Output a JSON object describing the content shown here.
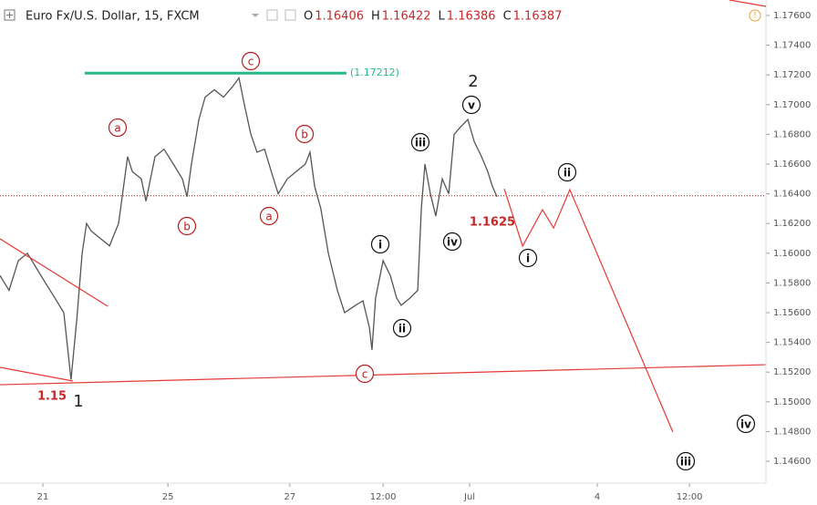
{
  "chart_data": {
    "type": "line",
    "title": "Euro Fx/U.S. Dollar, 15, FXCM",
    "ohlc": [
      {
        "label": "O",
        "value": 1.16406
      },
      {
        "label": "H",
        "value": 1.16422
      },
      {
        "label": "L",
        "value": 1.16386
      },
      {
        "label": "C",
        "value": 1.16387
      }
    ],
    "xlim": [
      0,
      296.5
    ],
    "xticks": [
      {
        "value": 16.6,
        "label": "21"
      },
      {
        "value": 65,
        "label": "25"
      },
      {
        "value": 112.2,
        "label": "27"
      },
      {
        "value": 148.3,
        "label": "12:00"
      },
      {
        "value": 181.8,
        "label": "Jul"
      },
      {
        "value": 231.2,
        "label": "4"
      },
      {
        "value": 266.9,
        "label": "12:00"
      }
    ],
    "ylim": [
      1.14453,
      1.17704
    ],
    "yticks": [
      {
        "value": 1.146,
        "label": "1.14600"
      },
      {
        "value": 1.148,
        "label": "1.14800"
      },
      {
        "value": 1.15,
        "label": "1.15000"
      },
      {
        "value": 1.152,
        "label": "1.15200"
      },
      {
        "value": 1.154,
        "label": "1.15400"
      },
      {
        "value": 1.156,
        "label": "1.15600"
      },
      {
        "value": 1.158,
        "label": "1.15800"
      },
      {
        "value": 1.16,
        "label": "1.16000"
      },
      {
        "value": 1.162,
        "label": "1.16200"
      },
      {
        "value": 1.164,
        "label": "1.16400"
      },
      {
        "value": 1.166,
        "label": "1.16600"
      },
      {
        "value": 1.168,
        "label": "1.16800"
      },
      {
        "value": 1.17,
        "label": "1.17000"
      },
      {
        "value": 1.172,
        "label": "1.17200"
      },
      {
        "value": 1.174,
        "label": "1.17400"
      },
      {
        "value": 1.176,
        "label": "1.17600"
      }
    ],
    "series": [
      {
        "name": "price",
        "color": "#555555",
        "x": [
          0,
          3.5,
          7.1,
          10.6,
          14.1,
          17.6,
          21.2,
          24.7,
          27.5,
          29.7,
          31.8,
          33.5,
          35.3,
          38.8,
          42.4,
          45.9,
          49.4,
          51.2,
          54.7,
          56.5,
          60,
          63.5,
          67.1,
          70.6,
          72.4,
          74.1,
          77,
          79.4,
          83,
          86.5,
          90,
          92.5,
          94.6,
          97.1,
          99.5,
          102.4,
          105.9,
          107.7,
          111.2,
          114.7,
          118.2,
          120,
          121.8,
          124.2,
          127.1,
          130.6,
          133.4,
          137.7,
          140.5,
          143,
          144,
          145.4,
          148.3,
          151.1,
          153.5,
          155.3,
          158.8,
          161.7,
          163.1,
          164.5,
          166.6,
          168.7,
          171.2,
          173.7,
          175.8,
          178.3,
          181.1,
          183.6,
          186.4,
          188.8,
          190.6,
          192.4
        ],
        "values": [
          1.1585,
          1.1575,
          1.1595,
          1.16,
          1.159,
          1.158,
          1.157,
          1.156,
          1.1515,
          1.1555,
          1.16,
          1.162,
          1.1615,
          1.161,
          1.1605,
          1.162,
          1.1665,
          1.1655,
          1.165,
          1.1635,
          1.1665,
          1.167,
          1.166,
          1.165,
          1.1638,
          1.166,
          1.169,
          1.1705,
          1.171,
          1.1705,
          1.1712,
          1.1718,
          1.17,
          1.168,
          1.1668,
          1.167,
          1.165,
          1.164,
          1.165,
          1.1655,
          1.166,
          1.1668,
          1.1645,
          1.163,
          1.16,
          1.1575,
          1.156,
          1.1565,
          1.1568,
          1.155,
          1.1535,
          1.157,
          1.1595,
          1.1585,
          1.157,
          1.1565,
          1.157,
          1.1575,
          1.163,
          1.166,
          1.164,
          1.1625,
          1.165,
          1.164,
          1.168,
          1.1685,
          1.169,
          1.1675,
          1.1665,
          1.1655,
          1.1645,
          1.1638
        ]
      },
      {
        "name": "projection",
        "color": "#e53935",
        "x": [
          195.2,
          202.3,
          210,
          214.3,
          220.6,
          260.5
        ],
        "values": [
          1.16434,
          1.16048,
          1.16293,
          1.1617,
          1.16428,
          1.14796
        ]
      },
      {
        "name": "trend-upper",
        "color": "#e53935",
        "x": [
          0,
          41.7
        ],
        "values": [
          1.16097,
          1.15643
        ]
      },
      {
        "name": "trend-lower-short",
        "color": "#e53935",
        "x": [
          0,
          28.2
        ],
        "values": [
          1.15232,
          1.1514
        ]
      },
      {
        "name": "trend-lower",
        "color": "#e53935",
        "x": [
          0,
          296.5
        ],
        "values": [
          1.15115,
          1.1525
        ]
      },
      {
        "name": "resistance",
        "color": "#26b98a",
        "x": [
          32.8,
          134.1
        ],
        "values": [
          1.17212,
          1.17212
        ],
        "value_labels": [
          "(1.17212)"
        ]
      }
    ],
    "current_price": 1.16387,
    "annotations": [
      {
        "text": "a",
        "style": "red"
      },
      {
        "text": "c",
        "style": "red"
      },
      {
        "text": "b",
        "style": "red"
      },
      {
        "text": "b",
        "style": "red"
      },
      {
        "text": "a",
        "style": "red"
      },
      {
        "text": "c",
        "style": "red"
      },
      {
        "text": "i",
        "style": "black"
      },
      {
        "text": "ii",
        "style": "black"
      },
      {
        "text": "iii",
        "style": "black"
      },
      {
        "text": "iv",
        "style": "black"
      },
      {
        "text": "v",
        "style": "black"
      },
      {
        "text": "2",
        "style": "plain"
      },
      {
        "text": "1",
        "style": "plain"
      },
      {
        "text": "1.15",
        "style": "price"
      },
      {
        "text": "1.1625",
        "style": "price"
      },
      {
        "text": "i",
        "style": "black"
      },
      {
        "text": "ii",
        "style": "black"
      },
      {
        "text": "iii",
        "style": "black"
      },
      {
        "text": "iv",
        "style": "black"
      }
    ]
  }
}
